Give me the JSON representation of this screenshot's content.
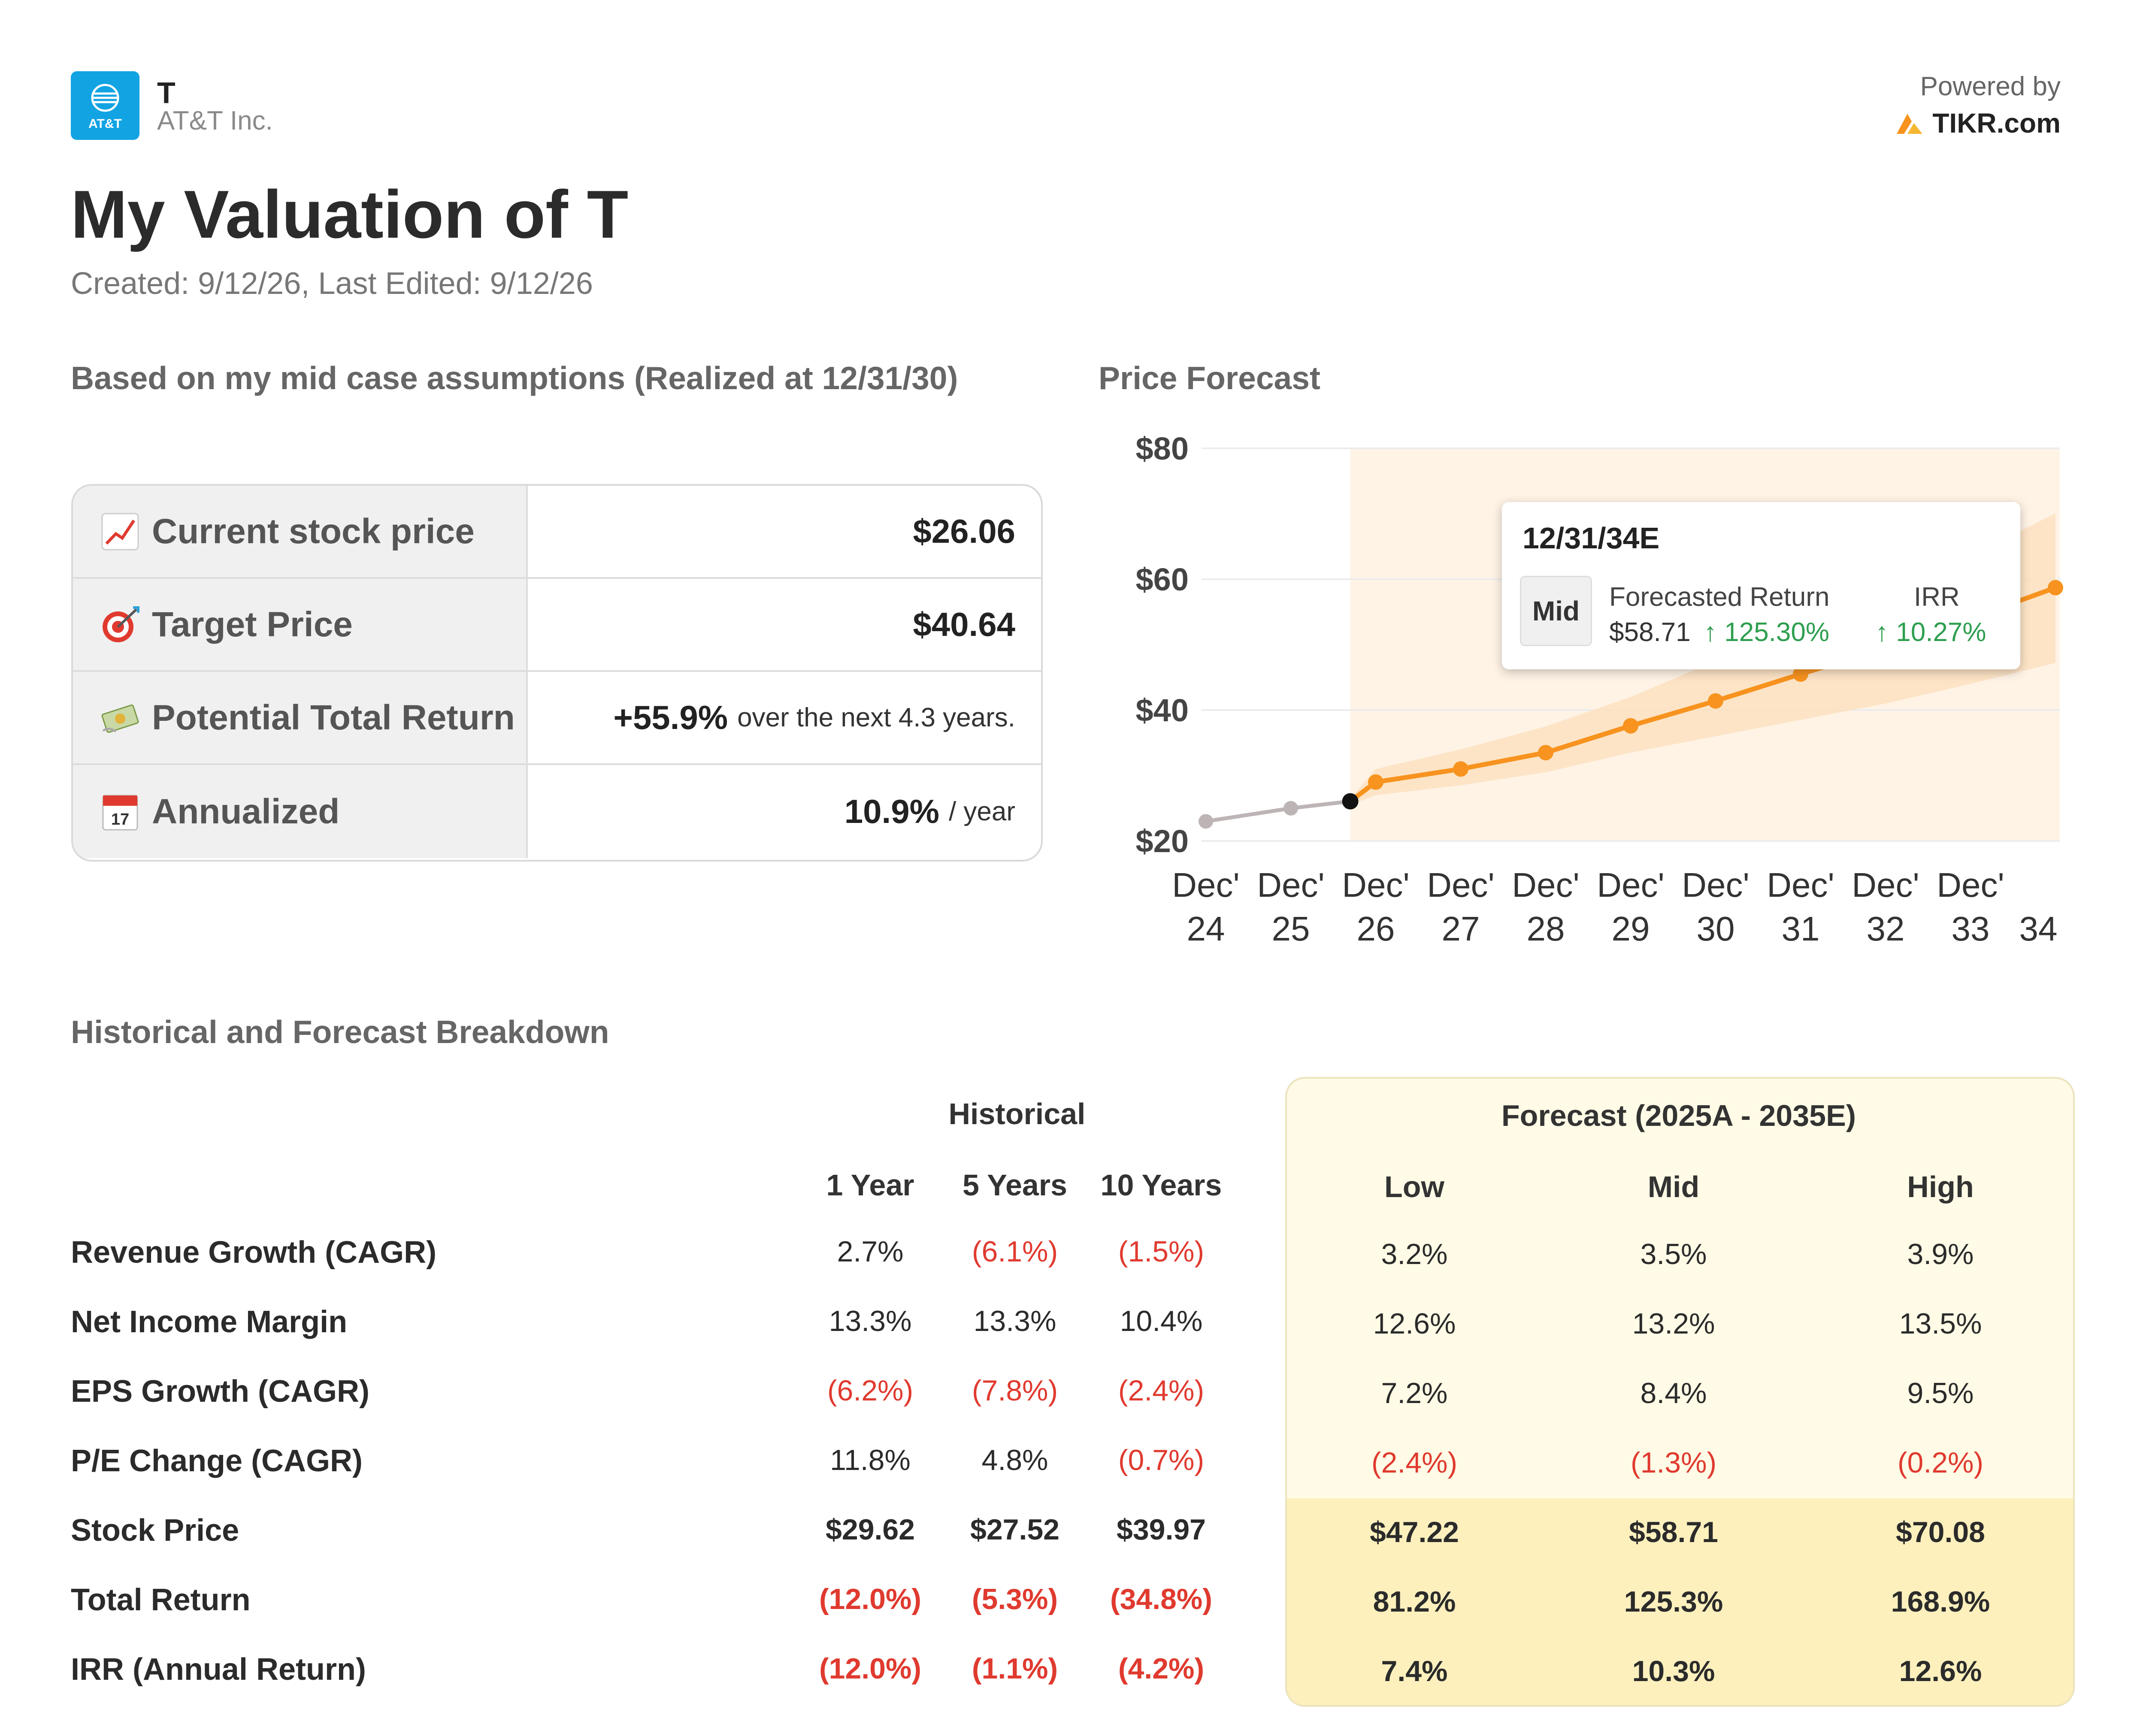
{
  "header": {
    "logo_text": "AT&T",
    "ticker": "T",
    "company": "AT&T Inc.",
    "powered_by": "Powered by",
    "brand": "TIKR.com"
  },
  "title": "My Valuation of T",
  "dates": "Created: 9/12/26, Last Edited: 9/12/26",
  "summary": {
    "heading": "Based on my mid case assumptions (Realized at 12/31/30)",
    "rows": [
      {
        "icon": "chart-up-icon",
        "label": "Current stock price",
        "value": "$26.06",
        "suffix": ""
      },
      {
        "icon": "target-icon",
        "label": "Target Price",
        "value": "$40.64",
        "suffix": ""
      },
      {
        "icon": "money-icon",
        "label": "Potential Total Return",
        "value": "+55.9%",
        "suffix": "over the next 4.3 years."
      },
      {
        "icon": "calendar-icon",
        "label": "Annualized",
        "value": "10.9%",
        "suffix": "/ year"
      }
    ]
  },
  "chart_data": {
    "type": "line",
    "title": "Price Forecast",
    "x": [
      "Dec'24",
      "Dec'25",
      "Dec'26",
      "Dec'27",
      "Dec'28",
      "Dec'29",
      "Dec'30",
      "Dec'31",
      "Dec'32",
      "Dec'33",
      "Dec'34"
    ],
    "x_tick_top": [
      "Dec'",
      "Dec'",
      "Dec'",
      "Dec'",
      "Dec'",
      "Dec'",
      "Dec'",
      "Dec'",
      "Dec'",
      "Dec'",
      ""
    ],
    "x_tick_bottom": [
      "24",
      "25",
      "26",
      "27",
      "28",
      "29",
      "30",
      "31",
      "32",
      "33",
      "34"
    ],
    "y_ticks": [
      "$80",
      "$60",
      "$40",
      "$20"
    ],
    "ylim": [
      20,
      80
    ],
    "historical": {
      "x": [
        0,
        1,
        1.7
      ],
      "y": [
        23,
        25,
        26.06
      ]
    },
    "forecast_mid": {
      "x": [
        1.7,
        2,
        3,
        4,
        5,
        6,
        7,
        8,
        9,
        10
      ],
      "y": [
        26.06,
        29,
        31,
        33.5,
        37.6,
        41.4,
        45.5,
        49.5,
        54,
        58.71
      ]
    },
    "forecast_low": [
      25.5,
      27,
      28.5,
      30.5,
      33.5,
      36,
      38.5,
      41,
      44,
      47.22
    ],
    "forecast_high": [
      26.5,
      31,
      34,
      37.5,
      42,
      47.5,
      52.5,
      57.5,
      63.5,
      70.08
    ],
    "grid": true,
    "colors": {
      "forecast": "#f7931e",
      "historical": "#bdb5b5",
      "band": "#fde0c0",
      "region": "#fff3e6"
    },
    "tooltip": {
      "date": "12/31/34E",
      "case": "Mid",
      "forecasted_return_label": "Forecasted Return",
      "irr_label": "IRR",
      "price": "$58.71",
      "return": "↑ 125.30%",
      "irr": "↑ 10.27%"
    }
  },
  "breakdown": {
    "heading": "Historical and Forecast Breakdown",
    "historical_heading": "Historical",
    "forecast_heading": "Forecast (2025A - 2035E)",
    "columns": [
      "1 Year",
      "5 Years",
      "10 Years",
      "Low",
      "Mid",
      "High"
    ],
    "rows": [
      {
        "label": "Revenue Growth (CAGR)",
        "values": [
          "2.7%",
          "(6.1%)",
          "(1.5%)",
          "3.2%",
          "3.5%",
          "3.9%"
        ]
      },
      {
        "label": "Net Income Margin",
        "values": [
          "13.3%",
          "13.3%",
          "10.4%",
          "12.6%",
          "13.2%",
          "13.5%"
        ]
      },
      {
        "label": "EPS Growth (CAGR)",
        "values": [
          "(6.2%)",
          "(7.8%)",
          "(2.4%)",
          "7.2%",
          "8.4%",
          "9.5%"
        ]
      },
      {
        "label": "P/E Change (CAGR)",
        "values": [
          "11.8%",
          "4.8%",
          "(0.7%)",
          "(2.4%)",
          "(1.3%)",
          "(0.2%)"
        ]
      },
      {
        "label": "Stock Price",
        "values": [
          "$29.62",
          "$27.52",
          "$39.97",
          "$47.22",
          "$58.71",
          "$70.08"
        ]
      },
      {
        "label": "Total Return",
        "values": [
          "(12.0%)",
          "(5.3%)",
          "(34.8%)",
          "81.2%",
          "125.3%",
          "168.9%"
        ]
      },
      {
        "label": "IRR (Annual Return)",
        "values": [
          "(12.0%)",
          "(1.1%)",
          "(4.2%)",
          "7.4%",
          "10.3%",
          "12.6%"
        ]
      }
    ]
  }
}
